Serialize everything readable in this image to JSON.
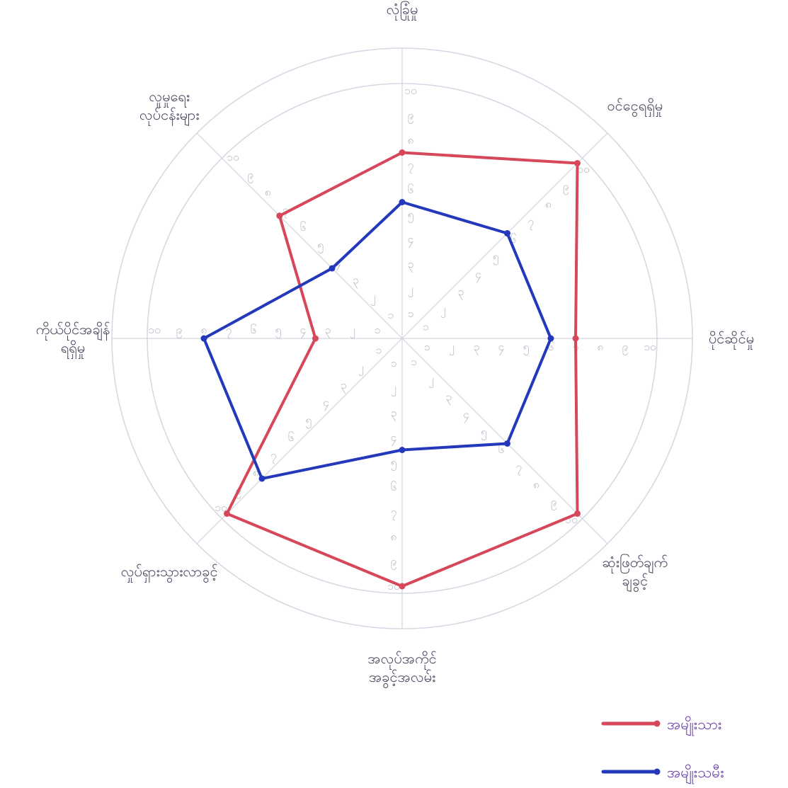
{
  "chart_data": {
    "type": "radar",
    "axes": [
      "လုံခြုံမှု",
      "ဝင်ငွေရရှိမှု",
      "ပိုင်ဆိုင်မှု",
      "ဆုံးဖြတ်ချက်ချခွင့်",
      "အလုပ်အကိုင်အခွင့်အလမ်း",
      "လှုပ်ရှားသွားလာခွင့်",
      "ကိုယ်ပိုင်အချိန်ရရှိမှု",
      "လူမှုရေးလုပ်ငန်းများ"
    ],
    "axis_label_lines": [
      [
        "လုံခြုံမှု"
      ],
      [
        "ဝင်ငွေရရှိမှု"
      ],
      [
        "ပိုင်ဆိုင်မှု"
      ],
      [
        "ဆုံးဖြတ်ချက်",
        "ချခွင့်"
      ],
      [
        "အလုပ်အကိုင်",
        "အခွင့်အလမ်း"
      ],
      [
        "လှုပ်ရှားသွားလာခွင့်"
      ],
      [
        "ကိုယ်ပိုင်အချိန်",
        "ရရှိမှု"
      ],
      [
        "လူမှုရေး",
        "လုပ်ငန်းများ"
      ]
    ],
    "ticks": [
      "၁",
      "၂",
      "၃",
      "၄",
      "၅",
      "၆",
      "၇",
      "၈",
      "၉",
      "၁၀"
    ],
    "rlim": [
      0,
      10
    ],
    "series": [
      {
        "name": "အမျိုးသား",
        "values": [
          7.5,
          10,
          7,
          10,
          10,
          10,
          3.5,
          7
        ],
        "color": "#d6475a"
      },
      {
        "name": "အမျိုးသမီး",
        "values": [
          5.5,
          6,
          6,
          6,
          4.5,
          8,
          8,
          4
        ],
        "color": "#2338bb"
      }
    ],
    "grid": true,
    "legend_position": "bottom-right"
  }
}
